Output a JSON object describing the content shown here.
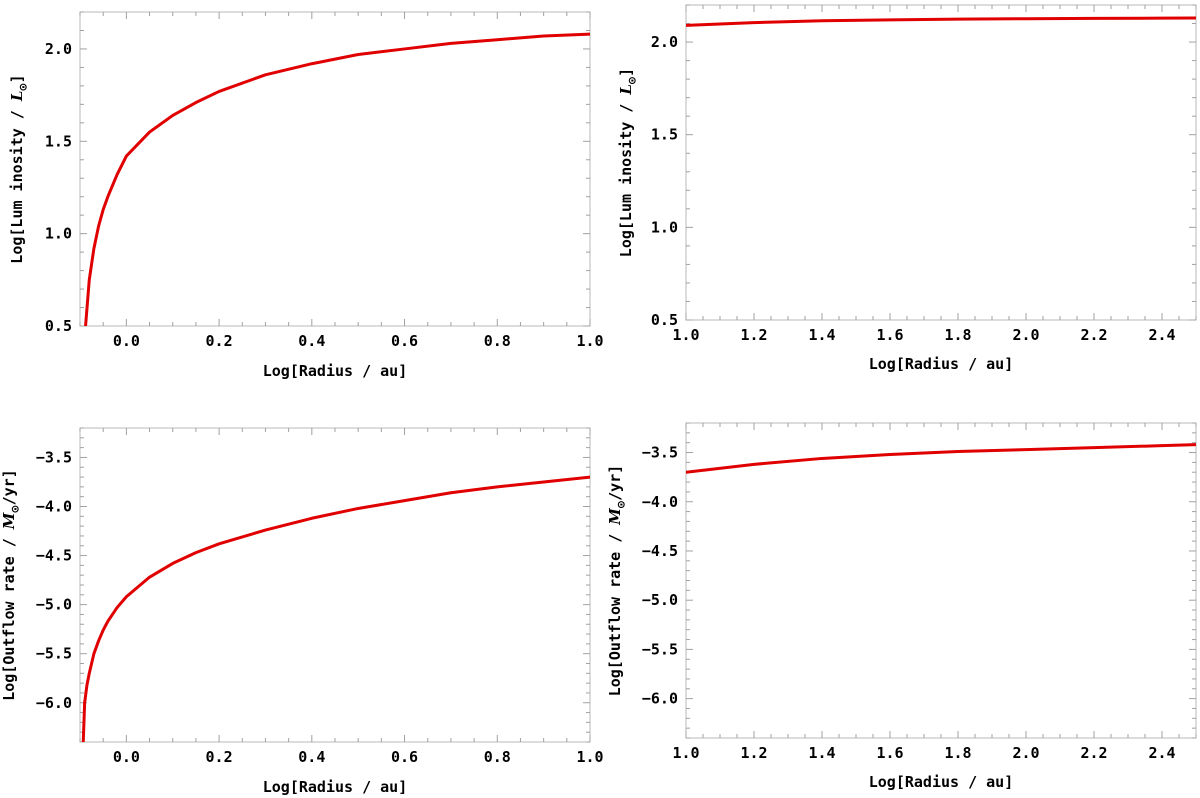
{
  "figure": {
    "panels": [
      {
        "id": "p1",
        "xlabel": "Log[Radius / au]",
        "ylabel_prefix": "Log[Lum inosity / ",
        "ylabel_unit": "L",
        "ylabel_suffix": "]"
      },
      {
        "id": "p2",
        "xlabel": "Log[Radius / au]",
        "ylabel_prefix": "Log[Lum inosity / ",
        "ylabel_unit": "L",
        "ylabel_suffix": "]"
      },
      {
        "id": "p3",
        "xlabel": "Log[Radius / au]",
        "ylabel_prefix": "Log[Outflow rate / ",
        "ylabel_unit": "M",
        "ylabel_suffix": "/yr]"
      },
      {
        "id": "p4",
        "xlabel": "Log[Radius / au]",
        "ylabel_prefix": "Log[Outflow rate / ",
        "ylabel_unit": "M",
        "ylabel_suffix": "/yr]"
      }
    ]
  },
  "chart_data": [
    {
      "type": "line",
      "xlabel": "Log[Radius / au]",
      "ylabel": "Log[Lum inosity / L☉]",
      "xlim": [
        -0.1,
        1.0
      ],
      "ylim": [
        0.5,
        2.2
      ],
      "xticks": [
        "0.0",
        "0.2",
        "0.4",
        "0.6",
        "0.8",
        "1.0"
      ],
      "yticks": [
        "0.5",
        "1.0",
        "1.5",
        "2.0"
      ],
      "grid": false,
      "line_color": "#e00000",
      "series": [
        {
          "x": [
            -0.088,
            -0.08,
            -0.07,
            -0.06,
            -0.05,
            -0.04,
            -0.02,
            0.0,
            0.05,
            0.1,
            0.15,
            0.2,
            0.3,
            0.4,
            0.5,
            0.6,
            0.7,
            0.8,
            0.9,
            1.0
          ],
          "values": [
            0.5,
            0.75,
            0.92,
            1.04,
            1.13,
            1.2,
            1.32,
            1.42,
            1.55,
            1.64,
            1.71,
            1.77,
            1.86,
            1.92,
            1.97,
            2.0,
            2.03,
            2.05,
            2.07,
            2.08
          ]
        }
      ]
    },
    {
      "type": "line",
      "xlabel": "Log[Radius / au]",
      "ylabel": "Log[Lum inosity / L☉]",
      "xlim": [
        1.0,
        2.5
      ],
      "ylim": [
        0.5,
        2.2
      ],
      "xticks": [
        "1.0",
        "1.2",
        "1.4",
        "1.6",
        "1.8",
        "2.0",
        "2.2",
        "2.4"
      ],
      "yticks": [
        "0.5",
        "1.0",
        "1.5",
        "2.0"
      ],
      "grid": false,
      "line_color": "#e00000",
      "series": [
        {
          "x": [
            1.0,
            1.2,
            1.4,
            1.6,
            1.8,
            2.0,
            2.2,
            2.4,
            2.5
          ],
          "values": [
            2.09,
            2.105,
            2.115,
            2.12,
            2.124,
            2.126,
            2.128,
            2.129,
            2.13
          ]
        }
      ]
    },
    {
      "type": "line",
      "xlabel": "Log[Radius / au]",
      "ylabel": "Log[Outflow rate / M☉/yr]",
      "xlim": [
        -0.1,
        1.0
      ],
      "ylim": [
        -6.4,
        -3.2
      ],
      "xticks": [
        "0.0",
        "0.2",
        "0.4",
        "0.6",
        "0.8",
        "1.0"
      ],
      "yticks": [
        "-6.0",
        "-5.5",
        "-5.0",
        "-4.5",
        "-4.0",
        "-3.5"
      ],
      "grid": false,
      "line_color": "#e00000",
      "series": [
        {
          "x": [
            -0.093,
            -0.09,
            -0.085,
            -0.08,
            -0.07,
            -0.06,
            -0.05,
            -0.04,
            -0.02,
            0.0,
            0.05,
            0.1,
            0.15,
            0.2,
            0.3,
            0.4,
            0.5,
            0.6,
            0.7,
            0.8,
            0.9,
            1.0
          ],
          "values": [
            -6.4,
            -6.0,
            -5.82,
            -5.7,
            -5.5,
            -5.37,
            -5.26,
            -5.17,
            -5.03,
            -4.92,
            -4.72,
            -4.58,
            -4.47,
            -4.38,
            -4.24,
            -4.12,
            -4.02,
            -3.94,
            -3.86,
            -3.8,
            -3.75,
            -3.7
          ]
        }
      ]
    },
    {
      "type": "line",
      "xlabel": "Log[Radius / au]",
      "ylabel": "Log[Outflow rate / M☉/yr]",
      "xlim": [
        1.0,
        2.5
      ],
      "ylim": [
        -6.4,
        -3.2
      ],
      "xticks": [
        "1.0",
        "1.2",
        "1.4",
        "1.6",
        "1.8",
        "2.0",
        "2.2",
        "2.4"
      ],
      "yticks": [
        "-6.0",
        "-5.5",
        "-5.0",
        "-4.5",
        "-4.0",
        "-3.5"
      ],
      "grid": false,
      "line_color": "#e00000",
      "series": [
        {
          "x": [
            1.0,
            1.2,
            1.4,
            1.6,
            1.8,
            2.0,
            2.2,
            2.4,
            2.5
          ],
          "values": [
            -3.7,
            -3.62,
            -3.56,
            -3.52,
            -3.49,
            -3.47,
            -3.45,
            -3.43,
            -3.42
          ]
        }
      ]
    }
  ]
}
